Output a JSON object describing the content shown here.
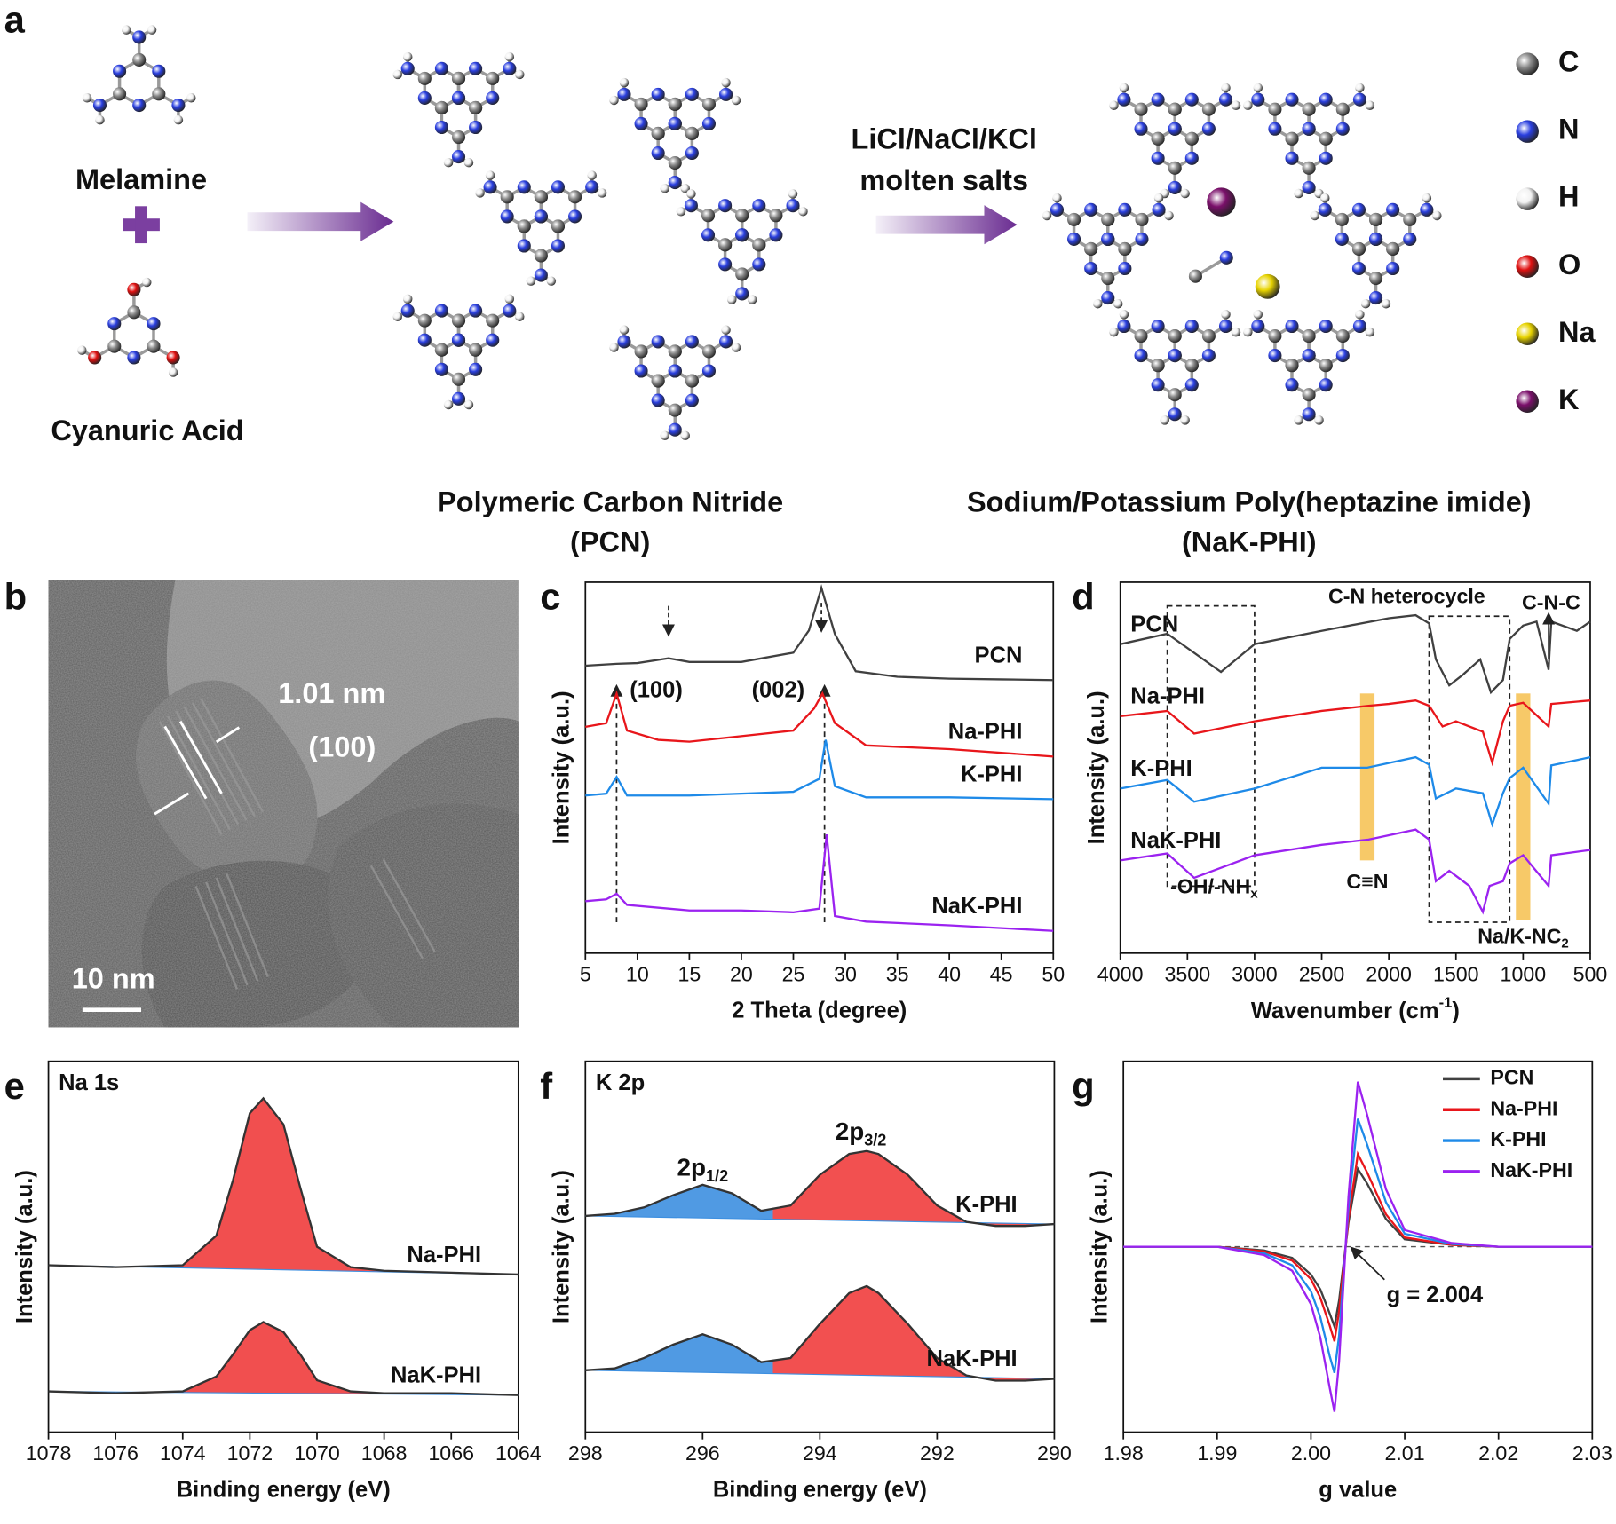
{
  "panel_labels": [
    "a",
    "b",
    "c",
    "d",
    "e",
    "f",
    "g"
  ],
  "scheme": {
    "reactant_1": "Melamine",
    "reactant_2": "Cyanuric Acid",
    "conditions": [
      "LiCl/NaCl/KCl",
      "molten salts"
    ],
    "product_1": [
      "Polymeric Carbon Nitride",
      "(PCN)"
    ],
    "product_2": [
      "Sodium/Potassium Poly(heptazine imide)",
      "(NaK-PHI)"
    ],
    "atom_legend": [
      {
        "label": "C",
        "color": "#8a8a8a"
      },
      {
        "label": "N",
        "color": "#2a3fe0"
      },
      {
        "label": "H",
        "color": "#f2f2f2"
      },
      {
        "label": "O",
        "color": "#e01010"
      },
      {
        "label": "Na",
        "color": "#e8d400"
      },
      {
        "label": "K",
        "color": "#7a0f6a"
      }
    ]
  },
  "tem": {
    "d_spacing": "1.01 nm",
    "plane": "(100)",
    "scale_bar": "10 nm"
  },
  "chart_data": [
    {
      "type": "line",
      "x_label": "2 Theta (degree)",
      "y_label": "Intensity (a.u.)",
      "xlim": [
        5,
        50
      ],
      "xticks": [
        5,
        10,
        15,
        20,
        25,
        30,
        35,
        40,
        45,
        50
      ],
      "ylim": [
        0,
        10
      ],
      "annotations": [
        {
          "text": "(100)",
          "x": 13
        },
        {
          "text": "(002)",
          "x": 27.7
        }
      ],
      "dashed_lines": [
        8,
        28
      ],
      "series": [
        {
          "name": "PCN",
          "color": "#404040",
          "x": [
            5,
            8,
            10,
            13,
            15,
            20,
            25,
            26.5,
            27.7,
            29,
            31,
            35,
            40,
            45,
            50
          ],
          "values": [
            7.75,
            7.8,
            7.82,
            7.95,
            7.85,
            7.85,
            8.1,
            8.7,
            9.85,
            8.6,
            7.6,
            7.45,
            7.4,
            7.38,
            7.36
          ]
        },
        {
          "name": "Na-PHI",
          "color": "#e8161b",
          "x": [
            5,
            7,
            8,
            9,
            12,
            15,
            20,
            25,
            27,
            27.8,
            29,
            32,
            40,
            50
          ],
          "values": [
            6.1,
            6.2,
            7.0,
            6.0,
            5.75,
            5.7,
            5.85,
            6.0,
            6.6,
            7.0,
            6.2,
            5.6,
            5.5,
            5.3
          ]
        },
        {
          "name": "K-PHI",
          "color": "#1e8ae8",
          "x": [
            5,
            7,
            8,
            9,
            15,
            20,
            25,
            27.5,
            28.1,
            29,
            32,
            40,
            50
          ],
          "values": [
            4.25,
            4.3,
            4.75,
            4.25,
            4.25,
            4.3,
            4.35,
            4.7,
            5.75,
            4.5,
            4.2,
            4.2,
            4.15
          ]
        },
        {
          "name": "NaK-PHI",
          "color": "#9b22f0",
          "x": [
            5,
            7,
            8,
            9,
            15,
            20,
            25,
            27.5,
            28.2,
            29,
            32,
            40,
            50
          ],
          "values": [
            1.4,
            1.45,
            1.6,
            1.3,
            1.15,
            1.15,
            1.1,
            1.2,
            3.2,
            1.0,
            0.85,
            0.75,
            0.6
          ]
        }
      ]
    },
    {
      "type": "line",
      "x_label": {
        "text": "Wavenumber (cm",
        "sup": "-1",
        "end": ")"
      },
      "y_label": "Intensity (a.u.)",
      "xlim": [
        4000,
        500
      ],
      "xticks": [
        4000,
        3500,
        3000,
        2500,
        2000,
        1500,
        1000,
        500
      ],
      "ylim": [
        0,
        10
      ],
      "annotations": [
        {
          "text": "C-N heterocycle"
        },
        {
          "text": "C-N-C",
          "x": 810
        },
        {
          "text": "C≡N",
          "x": 2160
        },
        {
          "text": "-OH/-NH",
          "sub": "x"
        },
        {
          "text": "Na/K-NC",
          "sub": "2"
        }
      ],
      "highlight_bands": [
        2160,
        1000
      ],
      "highlight_color": "#f6c04e",
      "dashed_regions": [
        [
          3650,
          3000
        ],
        [
          1700,
          1100
        ]
      ],
      "series": [
        {
          "name": "PCN",
          "color": "#404040",
          "x": [
            4000,
            3650,
            3250,
            3000,
            2500,
            2000,
            1800,
            1700,
            1650,
            1550,
            1450,
            1320,
            1240,
            1150,
            1100,
            1000,
            900,
            810,
            790,
            600,
            500
          ],
          "values": [
            8.33,
            8.61,
            7.58,
            8.33,
            8.69,
            9.03,
            9.11,
            8.89,
            7.92,
            7.22,
            7.5,
            7.92,
            7.03,
            7.36,
            8.47,
            8.83,
            8.94,
            7.64,
            8.94,
            8.69,
            8.94
          ]
        },
        {
          "name": "Na-PHI",
          "color": "#e8161b",
          "x": [
            4000,
            3650,
            3450,
            3000,
            2500,
            2150,
            2000,
            1800,
            1700,
            1600,
            1500,
            1300,
            1230,
            1150,
            1100,
            1000,
            810,
            790,
            500
          ],
          "values": [
            6.39,
            6.53,
            5.92,
            6.25,
            6.53,
            6.67,
            6.72,
            6.81,
            6.67,
            6.11,
            6.25,
            5.97,
            5.14,
            6.25,
            6.67,
            6.75,
            6.11,
            6.72,
            6.81
          ]
        },
        {
          "name": "K-PHI",
          "color": "#1e8ae8",
          "x": [
            4000,
            3650,
            3450,
            3000,
            2500,
            2160,
            1800,
            1700,
            1650,
            1500,
            1300,
            1230,
            1150,
            1100,
            1000,
            810,
            790,
            500
          ],
          "values": [
            4.44,
            4.67,
            4.08,
            4.44,
            5.0,
            5.0,
            5.28,
            5.08,
            4.17,
            4.44,
            4.31,
            3.47,
            4.31,
            4.72,
            5.0,
            4.03,
            5.06,
            5.28
          ]
        },
        {
          "name": "NaK-PHI",
          "color": "#9b22f0",
          "x": [
            4000,
            3650,
            3450,
            3000,
            2500,
            2150,
            1800,
            1700,
            1650,
            1550,
            1400,
            1300,
            1250,
            1150,
            1100,
            1000,
            810,
            790,
            500
          ],
          "values": [
            2.5,
            2.69,
            2.03,
            2.64,
            2.92,
            3.06,
            3.33,
            3.06,
            1.94,
            2.22,
            1.81,
            1.11,
            1.81,
            1.94,
            2.42,
            2.64,
            1.81,
            2.64,
            2.78
          ]
        }
      ]
    },
    {
      "type": "line",
      "title": "Na 1s",
      "x_label": "Binding energy (eV)",
      "y_label": "Intensity (a.u.)",
      "xlim": [
        1078,
        1064
      ],
      "xticks": [
        1078,
        1076,
        1074,
        1072,
        1070,
        1068,
        1066,
        1064
      ],
      "ylim": [
        0,
        10
      ],
      "fill_color": "#f03c3c",
      "series": [
        {
          "name": "Na-PHI",
          "color": "#333333",
          "x": [
            1078,
            1076,
            1074,
            1073,
            1072.5,
            1072,
            1071.6,
            1071,
            1070.5,
            1070,
            1069,
            1068,
            1066,
            1064
          ],
          "values": [
            4.5,
            4.45,
            4.5,
            5.3,
            6.8,
            8.6,
            9.0,
            8.3,
            6.6,
            5.0,
            4.45,
            4.35,
            4.3,
            4.25
          ]
        },
        {
          "name": "NaK-PHI",
          "color": "#333333",
          "x": [
            1078,
            1076,
            1074,
            1073,
            1072.5,
            1072,
            1071.6,
            1071,
            1070.5,
            1070,
            1069,
            1068,
            1066,
            1064
          ],
          "values": [
            1.1,
            1.05,
            1.1,
            1.5,
            2.1,
            2.75,
            2.97,
            2.7,
            2.1,
            1.4,
            1.1,
            1.05,
            1.05,
            1.0
          ]
        }
      ]
    },
    {
      "type": "line",
      "title": "K 2p",
      "x_label": "Binding energy (eV)",
      "y_label": "Intensity (a.u.)",
      "xlim": [
        298,
        290
      ],
      "xticks": [
        298,
        296,
        294,
        292,
        290
      ],
      "ylim": [
        0,
        10
      ],
      "peaks": [
        {
          "text": "2p",
          "sub": "1/2",
          "x": 296,
          "color": "#3d8fe0"
        },
        {
          "text": "2p",
          "sub": "3/2",
          "x": 293.3,
          "color": "#f03c3c"
        }
      ],
      "component_boundary": 294.8,
      "series": [
        {
          "name": "K-PHI",
          "color": "#333333",
          "x": [
            298,
            297.5,
            297,
            296.5,
            296,
            295.5,
            295,
            294.5,
            294,
            293.5,
            293.2,
            293,
            292.5,
            292,
            291.5,
            291,
            290.5,
            290
          ],
          "values": [
            5.83,
            5.89,
            6.06,
            6.39,
            6.67,
            6.44,
            5.97,
            6.11,
            6.94,
            7.5,
            7.58,
            7.5,
            6.94,
            6.11,
            5.67,
            5.56,
            5.56,
            5.61
          ]
        },
        {
          "name": "NaK-PHI",
          "color": "#333333",
          "x": [
            298,
            297.5,
            297,
            296.5,
            296,
            295.5,
            295,
            294.5,
            294,
            293.5,
            293.2,
            293,
            292.5,
            292,
            291.5,
            291,
            290.5,
            290
          ],
          "values": [
            1.67,
            1.72,
            2.0,
            2.36,
            2.64,
            2.36,
            1.89,
            2.0,
            2.92,
            3.75,
            3.94,
            3.75,
            2.92,
            2.0,
            1.53,
            1.39,
            1.39,
            1.44
          ]
        }
      ]
    },
    {
      "type": "line",
      "x_label": "g value",
      "y_label": "Intensity (a.u.)",
      "xlim": [
        1.98,
        2.03
      ],
      "xticks": [
        1.98,
        1.99,
        {
          "value": 2.0,
          "label": "2.00"
        },
        2.01,
        2.02,
        2.03
      ],
      "ylim": [
        -10,
        10
      ],
      "legend": "top-right",
      "annotations": [
        {
          "text": "g = 2.004",
          "x": 2.004
        }
      ],
      "series": [
        {
          "name": "PCN",
          "color": "#404040",
          "x": [
            1.98,
            1.99,
            1.995,
            1.998,
            2.0,
            2.001,
            2.002,
            2.0025,
            2.003,
            2.004,
            2.005,
            2.006,
            2.008,
            2.01,
            2.015,
            2.02,
            2.03
          ],
          "values": [
            0,
            0,
            -0.2,
            -0.6,
            -1.5,
            -2.3,
            -3.6,
            -4.3,
            -2.9,
            1.3,
            4.2,
            3.4,
            1.5,
            0.4,
            0.1,
            0,
            0
          ]
        },
        {
          "name": "Na-PHI",
          "color": "#e8161b",
          "x": [
            1.98,
            1.99,
            1.995,
            1.998,
            2.0,
            2.001,
            2.002,
            2.0025,
            2.003,
            2.004,
            2.005,
            2.006,
            2.008,
            2.01,
            2.015,
            2.02,
            2.03
          ],
          "values": [
            0,
            0,
            -0.25,
            -0.75,
            -1.75,
            -2.75,
            -4.25,
            -5.1,
            -3.5,
            1.5,
            5,
            4,
            1.75,
            0.5,
            0.1,
            0,
            0
          ]
        },
        {
          "name": "K-PHI",
          "color": "#1e8ae8",
          "x": [
            1.98,
            1.99,
            1.995,
            1.998,
            2.0,
            2.001,
            2.002,
            2.0025,
            2.003,
            2.004,
            2.005,
            2.006,
            2.008,
            2.01,
            2.015,
            2.02,
            2.03
          ],
          "values": [
            0,
            0,
            -0.35,
            -1.0,
            -2.4,
            -3.8,
            -5.9,
            -6.8,
            -4.8,
            2.1,
            6.9,
            5.5,
            2.4,
            0.7,
            0.15,
            0,
            0
          ]
        },
        {
          "name": "NaK-PHI",
          "color": "#9b22f0",
          "x": [
            1.98,
            1.99,
            1.995,
            1.998,
            2.0,
            2.001,
            2.002,
            2.0025,
            2.003,
            2.004,
            2.005,
            2.006,
            2.008,
            2.01,
            2.015,
            2.02,
            2.03
          ],
          "values": [
            0,
            0,
            -0.45,
            -1.3,
            -3.1,
            -4.9,
            -7.6,
            -8.9,
            -6.2,
            2.7,
            8.9,
            7.1,
            3.1,
            0.9,
            0.2,
            0,
            0
          ]
        }
      ]
    }
  ]
}
